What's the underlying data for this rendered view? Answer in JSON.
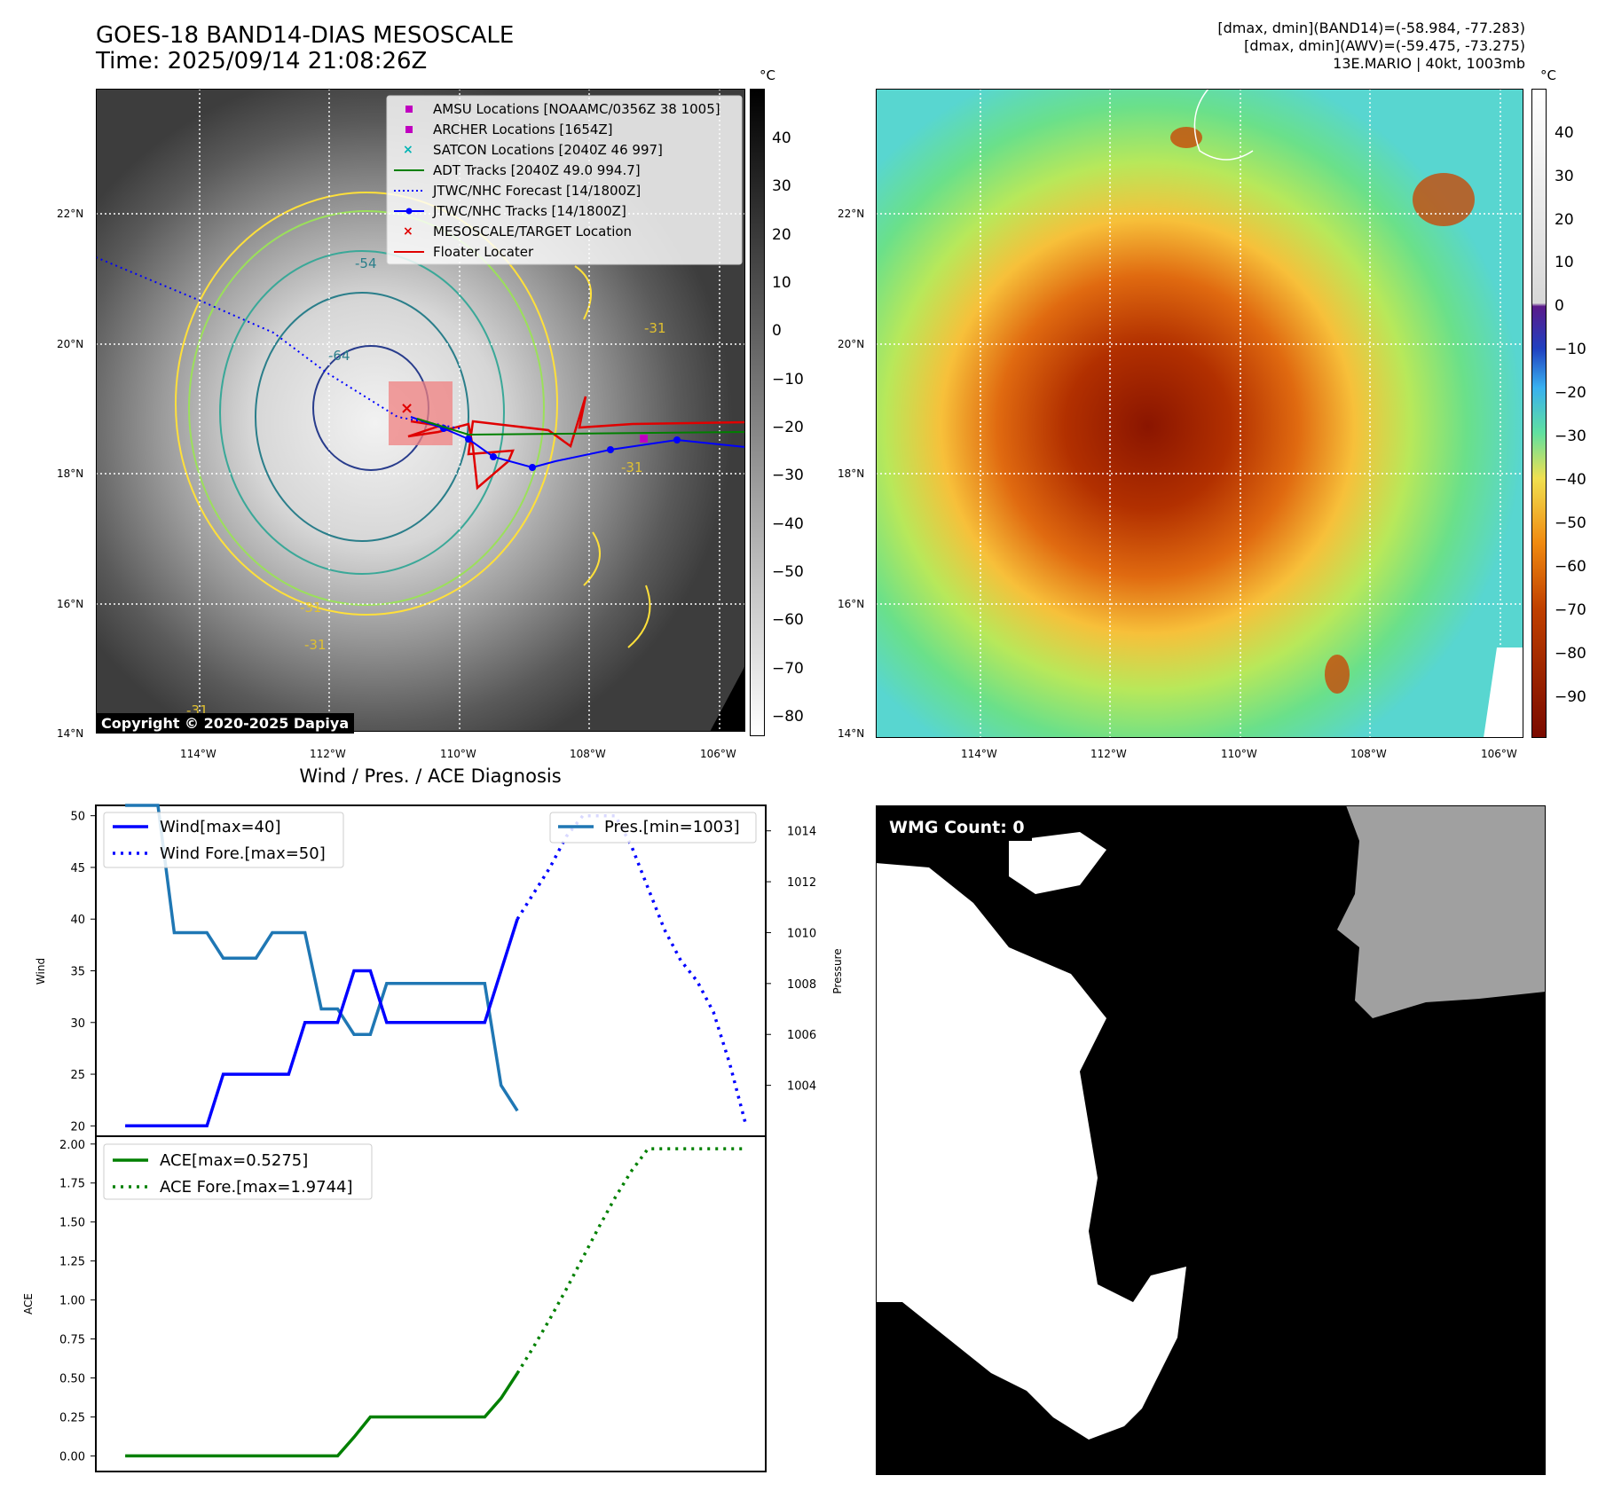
{
  "header": {
    "title_line1": "GOES-18 BAND14-DIAS MESOSCALE",
    "title_line2": "Time: 2025/09/14 21:08:26Z",
    "info_line1": "[dmax, dmin](BAND14)=(-58.984, -77.283)",
    "info_line2": "[dmax, dmin](AWV)=(-59.475, -73.275)",
    "info_line3": "13E.MARIO | 40kt, 1003mb"
  },
  "maps": {
    "lat_ticks": [
      "22°N",
      "20°N",
      "18°N",
      "16°N",
      "14°N"
    ],
    "lon_ticks": [
      "114°W",
      "112°W",
      "110°W",
      "108°W",
      "106°W"
    ],
    "unit": "°C",
    "left_colorbar_ticks": [
      "40",
      "30",
      "20",
      "10",
      "0",
      "−10",
      "−20",
      "−30",
      "−40",
      "−50",
      "−60",
      "−70",
      "−80"
    ],
    "right_colorbar_ticks": [
      "40",
      "30",
      "20",
      "10",
      "0",
      "−10",
      "−20",
      "−30",
      "−40",
      "−50",
      "−60",
      "−70",
      "−80",
      "−90"
    ],
    "contour_labels": [
      "-54",
      "-64",
      "-31",
      "-31",
      "-31",
      "-31",
      "-31"
    ],
    "copyright": "Copyright © 2020-2025 Dapiya",
    "legend": [
      {
        "label": "AMSU Locations [NOAAMC/0356Z 38 1005]",
        "marker": "square",
        "color": "#c000c0"
      },
      {
        "label": "ARCHER Locations [1654Z]",
        "marker": "square",
        "color": "#c000c0"
      },
      {
        "label": "SATCON Locations [2040Z 46 997]",
        "marker": "x",
        "color": "#00b4b4"
      },
      {
        "label": "ADT Tracks [2040Z 49.0 994.7]",
        "marker": "line",
        "color": "#008000"
      },
      {
        "label": "JTWC/NHC Forecast [14/1800Z]",
        "marker": "dotted",
        "color": "#0000ff"
      },
      {
        "label": "JTWC/NHC Tracks [14/1800Z]",
        "marker": "line-dot",
        "color": "#0000ff"
      },
      {
        "label": "MESOSCALE/TARGET Location",
        "marker": "x",
        "color": "#e00000"
      },
      {
        "label": "Floater Locater",
        "marker": "line",
        "color": "#e00000"
      }
    ]
  },
  "wmg": {
    "label": "WMG Count: 0"
  },
  "chart_data": [
    {
      "type": "line",
      "title": "Wind / Pres. / ACE Diagnosis",
      "ylabel": "Wind",
      "ylabel_right": "Pressure",
      "ylim": [
        19,
        51
      ],
      "ylim_right": [
        1002.0,
        1015.0
      ],
      "y_ticks": [
        "50",
        "45",
        "40",
        "35",
        "30",
        "25",
        "20"
      ],
      "y_ticks_right": [
        "1014",
        "1012",
        "1010",
        "1008",
        "1006",
        "1004"
      ],
      "series": [
        {
          "name": "Wind[max=40]",
          "color": "#0000ff",
          "style": "solid",
          "axis": "left",
          "x": [
            0,
            1,
            2,
            3,
            4,
            5,
            6,
            7,
            8,
            9,
            10,
            11,
            12,
            13,
            14,
            15,
            16,
            17,
            18,
            19,
            20,
            21,
            22,
            23,
            24
          ],
          "values": [
            20,
            20,
            20,
            20,
            20,
            20,
            25,
            25,
            25,
            25,
            25,
            30,
            30,
            30,
            35,
            35,
            30,
            30,
            30,
            30,
            30,
            30,
            30,
            35,
            40
          ]
        },
        {
          "name": "Wind Fore.[max=50]",
          "color": "#0000ff",
          "style": "dotted",
          "axis": "left",
          "x": [
            24,
            26,
            27,
            28,
            29,
            30,
            31,
            32,
            33,
            34,
            35,
            36,
            37,
            38
          ],
          "values": [
            40,
            45,
            48,
            50,
            50,
            50,
            47,
            43,
            39,
            36,
            34,
            31,
            26,
            20
          ]
        },
        {
          "name": "Pres.[min=1003]",
          "color": "#1f77b4",
          "style": "solid",
          "axis": "right",
          "x": [
            0,
            1,
            2,
            3,
            4,
            5,
            6,
            7,
            8,
            9,
            10,
            11,
            12,
            13,
            14,
            15,
            16,
            17,
            18,
            19,
            20,
            21,
            22,
            23,
            24
          ],
          "values": [
            1015,
            1015,
            1015,
            1010,
            1010,
            1010,
            1009,
            1009,
            1009,
            1010,
            1010,
            1010,
            1007,
            1007,
            1006,
            1006,
            1008,
            1008,
            1008,
            1008,
            1008,
            1008,
            1008,
            1004,
            1003
          ]
        }
      ]
    },
    {
      "type": "line",
      "ylabel": "ACE",
      "ylim": [
        -0.1,
        2.05
      ],
      "y_ticks": [
        "2.00",
        "1.75",
        "1.50",
        "1.25",
        "1.00",
        "0.75",
        "0.50",
        "0.25",
        "0.00"
      ],
      "series": [
        {
          "name": "ACE[max=0.5275]",
          "color": "#008000",
          "style": "solid",
          "x": [
            0,
            1,
            2,
            3,
            4,
            5,
            6,
            7,
            8,
            9,
            10,
            11,
            12,
            13,
            14,
            15,
            16,
            17,
            18,
            19,
            20,
            21,
            22,
            23,
            24
          ],
          "values": [
            0,
            0,
            0,
            0,
            0,
            0,
            0,
            0,
            0,
            0,
            0,
            0,
            0,
            0,
            0.12,
            0.25,
            0.25,
            0.25,
            0.25,
            0.25,
            0.25,
            0.25,
            0.25,
            0.37,
            0.53
          ]
        },
        {
          "name": "ACE Fore.[max=1.9744]",
          "color": "#008000",
          "style": "dotted",
          "x": [
            24,
            25,
            26,
            27,
            28,
            29,
            30,
            31,
            32,
            33,
            34,
            35,
            36,
            37,
            38
          ],
          "values": [
            0.53,
            0.7,
            0.88,
            1.07,
            1.27,
            1.47,
            1.66,
            1.83,
            1.97,
            1.97,
            1.97,
            1.97,
            1.97,
            1.97,
            1.97
          ]
        }
      ]
    }
  ]
}
